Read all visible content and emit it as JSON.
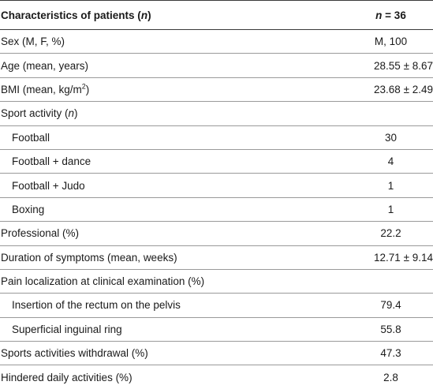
{
  "table": {
    "header": {
      "col1_text": "Characteristics of patients (",
      "col1_italic": "n",
      "col1_close": ")",
      "col2_italic": "n",
      "col2_text": " = 36"
    },
    "rows": [
      {
        "label": "Sex (M, F, %)",
        "value": "M, 100"
      },
      {
        "label": "Age (mean, years)",
        "value": "28.55 ± 8.67"
      },
      {
        "label_pre": "BMI (mean, kg/m",
        "label_sup": "2",
        "label_post": ")",
        "value": "23.68 ± 2.49"
      },
      {
        "label_pre": "Sport activity (",
        "label_italic": "n",
        "label_post": ")",
        "value": ""
      },
      {
        "label": "Football",
        "value": "30"
      },
      {
        "label": "Football + dance",
        "value": "4"
      },
      {
        "label": "Football + Judo",
        "value": "1"
      },
      {
        "label": "Boxing",
        "value": "1"
      },
      {
        "label": "Professional (%)",
        "value": "22.2"
      },
      {
        "label": "Duration of symptoms (mean, weeks)",
        "value": "12.71 ± 9.14"
      },
      {
        "label": "Pain localization at clinical examination (%)",
        "value": ""
      },
      {
        "label": "Insertion of the rectum on the pelvis",
        "value": "79.4"
      },
      {
        "label": "Superficial inguinal ring",
        "value": "55.8"
      },
      {
        "label": "Sports activities withdrawal (%)",
        "value": "47.3"
      },
      {
        "label": "Hindered daily activities (%)",
        "value": "2.8"
      }
    ]
  }
}
